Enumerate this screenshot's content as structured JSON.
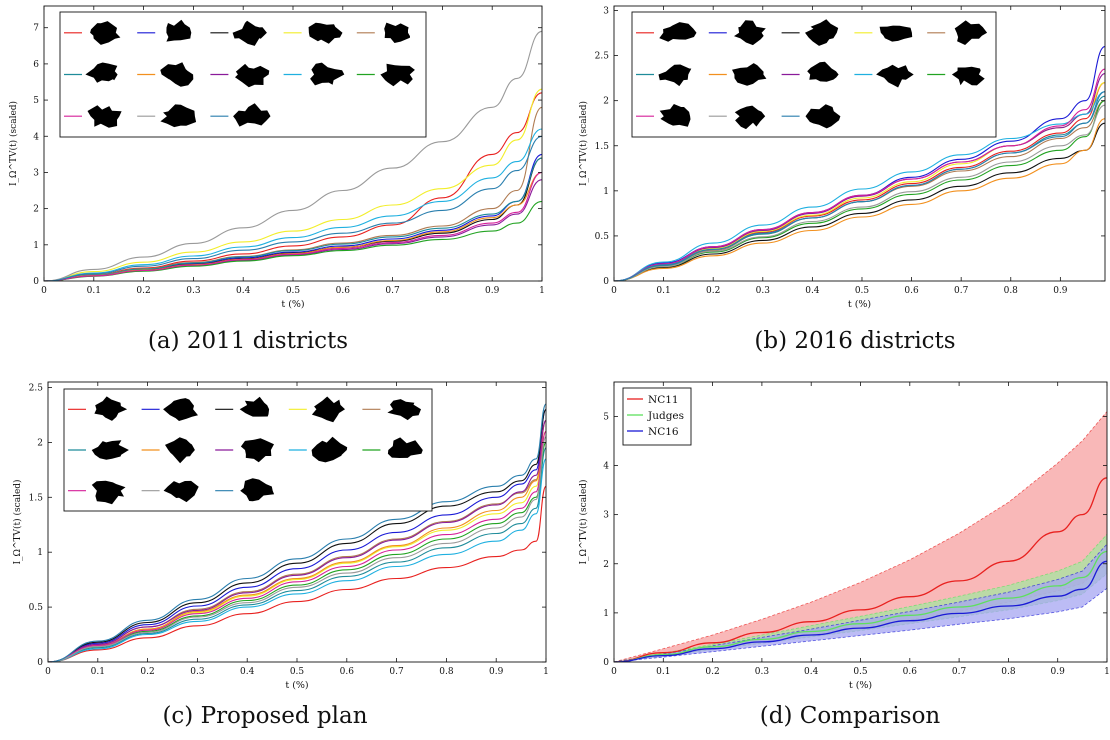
{
  "colors": {
    "red": "#e8211f",
    "blue": "#1a1ad6",
    "black": "#111111",
    "yellow": "#f2ee2a",
    "brown": "#b07b52",
    "teal": "#1f8c9a",
    "orange": "#f2901e",
    "purple": "#8a1a9a",
    "cyan": "#1fb0e0",
    "green": "#22a322",
    "magenta": "#d6209a",
    "gray": "#9a9a9a",
    "steel": "#2a7fae",
    "light_green": "#5ee05e",
    "nc11_fill": "#f7a0a0",
    "judges_fill": "#a6e6a0",
    "nc16_fill": "#a5a5f2"
  },
  "legend_icon": "district-shape-icon",
  "captions": {
    "a": "(a) 2011 districts",
    "b": "(b) 2016 districts",
    "c": "(c) Proposed plan",
    "d": "(d) Comparison"
  },
  "chart_data": [
    {
      "id": "a",
      "type": "line",
      "xlabel": "t (%)",
      "ylabel": "I_Ω^TV(t) (scaled)",
      "xlim": [
        0,
        1
      ],
      "ylim": [
        0,
        7.6
      ],
      "xticks": [
        "0",
        "0.1",
        "0.2",
        "0.3",
        "0.4",
        "0.5",
        "0.6",
        "0.7",
        "0.8",
        "0.9",
        "1"
      ],
      "yticks": [
        "0",
        "1",
        "2",
        "3",
        "4",
        "5",
        "6",
        "7"
      ],
      "legend_position": "top-left",
      "x": [
        0,
        0.1,
        0.2,
        0.3,
        0.4,
        0.5,
        0.6,
        0.7,
        0.8,
        0.9,
        0.95,
        1
      ],
      "series": [
        {
          "color": "red",
          "values": [
            0,
            0.18,
            0.36,
            0.55,
            0.75,
            0.97,
            1.22,
            1.55,
            2.3,
            3.5,
            4.1,
            5.2
          ]
        },
        {
          "color": "blue",
          "values": [
            0,
            0.16,
            0.32,
            0.48,
            0.64,
            0.8,
            0.97,
            1.16,
            1.4,
            1.8,
            2.2,
            3.5
          ]
        },
        {
          "color": "black",
          "values": [
            0,
            0.15,
            0.3,
            0.46,
            0.61,
            0.77,
            0.93,
            1.1,
            1.32,
            1.7,
            2.1,
            3.4
          ]
        },
        {
          "color": "yellow",
          "values": [
            0,
            0.26,
            0.52,
            0.8,
            1.08,
            1.38,
            1.7,
            2.1,
            2.55,
            3.2,
            3.9,
            5.3
          ]
        },
        {
          "color": "brown",
          "values": [
            0,
            0.17,
            0.34,
            0.51,
            0.68,
            0.86,
            1.05,
            1.26,
            1.52,
            2.0,
            2.5,
            4.8
          ]
        },
        {
          "color": "teal",
          "values": [
            0,
            0.16,
            0.33,
            0.5,
            0.67,
            0.84,
            1.02,
            1.22,
            1.46,
            1.85,
            2.2,
            3.4
          ]
        },
        {
          "color": "orange",
          "values": [
            0,
            0.15,
            0.3,
            0.45,
            0.6,
            0.76,
            0.93,
            1.12,
            1.36,
            1.75,
            2.1,
            3.0
          ]
        },
        {
          "color": "purple",
          "values": [
            0,
            0.14,
            0.28,
            0.43,
            0.57,
            0.72,
            0.87,
            1.03,
            1.22,
            1.55,
            1.85,
            2.8
          ]
        },
        {
          "color": "cyan",
          "values": [
            0,
            0.22,
            0.45,
            0.69,
            0.94,
            1.2,
            1.48,
            1.8,
            2.2,
            2.85,
            3.3,
            4.2
          ]
        },
        {
          "color": "green",
          "values": [
            0,
            0.13,
            0.27,
            0.41,
            0.55,
            0.7,
            0.84,
            0.99,
            1.15,
            1.38,
            1.6,
            2.2
          ]
        },
        {
          "color": "magenta",
          "values": [
            0,
            0.14,
            0.29,
            0.44,
            0.59,
            0.74,
            0.9,
            1.06,
            1.26,
            1.6,
            1.9,
            3.0
          ]
        },
        {
          "color": "gray",
          "values": [
            0,
            0.32,
            0.66,
            1.04,
            1.47,
            1.95,
            2.5,
            3.12,
            3.85,
            4.8,
            5.6,
            6.9
          ]
        },
        {
          "color": "steel",
          "values": [
            0,
            0.2,
            0.41,
            0.62,
            0.85,
            1.08,
            1.32,
            1.6,
            1.95,
            2.55,
            3.05,
            4.0
          ]
        }
      ]
    },
    {
      "id": "b",
      "type": "line",
      "xlabel": "t (%)",
      "ylabel": "I_Ω^TV(t) (scaled)",
      "xlim": [
        0,
        0.99
      ],
      "ylim": [
        0,
        3.05
      ],
      "xticks": [
        "0",
        "0.1",
        "0.2",
        "0.3",
        "0.4",
        "0.5",
        "0.6",
        "0.7",
        "0.8",
        "0.9"
      ],
      "yticks": [
        "0",
        "0.5",
        "1",
        "1.5",
        "2",
        "2.5",
        "3"
      ],
      "legend_position": "top-left",
      "x": [
        0,
        0.1,
        0.2,
        0.3,
        0.4,
        0.5,
        0.6,
        0.7,
        0.8,
        0.9,
        0.95,
        0.99
      ],
      "series": [
        {
          "color": "red",
          "values": [
            0,
            0.18,
            0.36,
            0.54,
            0.72,
            0.9,
            1.08,
            1.26,
            1.44,
            1.64,
            1.8,
            2.2
          ]
        },
        {
          "color": "blue",
          "values": [
            0,
            0.2,
            0.38,
            0.57,
            0.76,
            0.95,
            1.15,
            1.35,
            1.55,
            1.8,
            2.0,
            2.6
          ]
        },
        {
          "color": "black",
          "values": [
            0,
            0.15,
            0.3,
            0.45,
            0.6,
            0.75,
            0.9,
            1.05,
            1.2,
            1.36,
            1.45,
            1.75
          ]
        },
        {
          "color": "yellow",
          "values": [
            0,
            0.18,
            0.36,
            0.55,
            0.73,
            0.92,
            1.1,
            1.3,
            1.5,
            1.7,
            1.85,
            2.2
          ]
        },
        {
          "color": "brown",
          "values": [
            0,
            0.17,
            0.34,
            0.52,
            0.7,
            0.88,
            1.05,
            1.22,
            1.38,
            1.58,
            1.7,
            2.0
          ]
        },
        {
          "color": "teal",
          "values": [
            0,
            0.17,
            0.35,
            0.52,
            0.7,
            0.88,
            1.06,
            1.24,
            1.42,
            1.62,
            1.75,
            2.05
          ]
        },
        {
          "color": "orange",
          "values": [
            0,
            0.14,
            0.28,
            0.42,
            0.56,
            0.71,
            0.85,
            1.0,
            1.14,
            1.3,
            1.45,
            1.8
          ]
        },
        {
          "color": "purple",
          "values": [
            0,
            0.19,
            0.37,
            0.56,
            0.75,
            0.94,
            1.13,
            1.32,
            1.5,
            1.7,
            1.85,
            2.3
          ]
        },
        {
          "color": "cyan",
          "values": [
            0,
            0.21,
            0.42,
            0.62,
            0.82,
            1.02,
            1.21,
            1.4,
            1.58,
            1.74,
            1.85,
            2.1
          ]
        },
        {
          "color": "green",
          "values": [
            0,
            0.16,
            0.32,
            0.48,
            0.64,
            0.8,
            0.96,
            1.12,
            1.28,
            1.45,
            1.6,
            2.0
          ]
        },
        {
          "color": "magenta",
          "values": [
            0,
            0.19,
            0.38,
            0.57,
            0.76,
            0.95,
            1.13,
            1.32,
            1.5,
            1.72,
            1.9,
            2.35
          ]
        },
        {
          "color": "gray",
          "values": [
            0,
            0.16,
            0.33,
            0.49,
            0.66,
            0.82,
            0.99,
            1.15,
            1.32,
            1.5,
            1.62,
            1.95
          ]
        },
        {
          "color": "steel",
          "values": [
            0,
            0.18,
            0.35,
            0.53,
            0.7,
            0.88,
            1.06,
            1.24,
            1.42,
            1.6,
            1.75,
            2.1
          ]
        }
      ]
    },
    {
      "id": "c",
      "type": "line",
      "xlabel": "t (%)",
      "ylabel": "I_Ω^TV(t) (scaled)",
      "xlim": [
        0,
        1
      ],
      "ylim": [
        0,
        2.55
      ],
      "xticks": [
        "0",
        "0.1",
        "0.2",
        "0.3",
        "0.4",
        "0.5",
        "0.6",
        "0.7",
        "0.8",
        "0.9",
        "1"
      ],
      "yticks": [
        "0",
        "0.5",
        "1",
        "1.5",
        "2",
        "2.5"
      ],
      "legend_position": "top-left",
      "x": [
        0,
        0.1,
        0.2,
        0.3,
        0.4,
        0.5,
        0.6,
        0.7,
        0.8,
        0.9,
        0.95,
        0.98,
        1
      ],
      "series": [
        {
          "color": "red",
          "values": [
            0,
            0.11,
            0.22,
            0.33,
            0.44,
            0.55,
            0.66,
            0.76,
            0.86,
            0.96,
            1.02,
            1.1,
            1.6
          ]
        },
        {
          "color": "blue",
          "values": [
            0,
            0.17,
            0.34,
            0.51,
            0.68,
            0.85,
            1.02,
            1.18,
            1.34,
            1.5,
            1.62,
            1.75,
            2.3
          ]
        },
        {
          "color": "black",
          "values": [
            0,
            0.18,
            0.36,
            0.54,
            0.72,
            0.9,
            1.08,
            1.26,
            1.42,
            1.55,
            1.65,
            1.8,
            2.3
          ]
        },
        {
          "color": "yellow",
          "values": [
            0,
            0.15,
            0.3,
            0.45,
            0.6,
            0.75,
            0.9,
            1.05,
            1.2,
            1.35,
            1.45,
            1.6,
            2.1
          ]
        },
        {
          "color": "brown",
          "values": [
            0,
            0.16,
            0.32,
            0.48,
            0.64,
            0.8,
            0.96,
            1.12,
            1.28,
            1.44,
            1.54,
            1.66,
            2.2
          ]
        },
        {
          "color": "teal",
          "values": [
            0,
            0.13,
            0.26,
            0.39,
            0.52,
            0.65,
            0.78,
            0.91,
            1.04,
            1.17,
            1.26,
            1.4,
            1.95
          ]
        },
        {
          "color": "orange",
          "values": [
            0,
            0.15,
            0.3,
            0.46,
            0.61,
            0.76,
            0.91,
            1.06,
            1.22,
            1.38,
            1.5,
            1.65,
            2.2
          ]
        },
        {
          "color": "purple",
          "values": [
            0,
            0.16,
            0.32,
            0.47,
            0.63,
            0.79,
            0.95,
            1.11,
            1.27,
            1.43,
            1.55,
            1.7,
            2.2
          ]
        },
        {
          "color": "cyan",
          "values": [
            0,
            0.12,
            0.25,
            0.37,
            0.5,
            0.62,
            0.74,
            0.87,
            0.98,
            1.1,
            1.2,
            1.35,
            1.85
          ]
        },
        {
          "color": "green",
          "values": [
            0,
            0.14,
            0.28,
            0.42,
            0.56,
            0.7,
            0.84,
            0.98,
            1.12,
            1.26,
            1.36,
            1.5,
            2.0
          ]
        },
        {
          "color": "magenta",
          "values": [
            0,
            0.15,
            0.29,
            0.44,
            0.58,
            0.73,
            0.87,
            1.02,
            1.16,
            1.3,
            1.4,
            1.55,
            2.1
          ]
        },
        {
          "color": "gray",
          "values": [
            0,
            0.14,
            0.27,
            0.41,
            0.54,
            0.68,
            0.81,
            0.95,
            1.08,
            1.22,
            1.32,
            1.48,
            2.05
          ]
        },
        {
          "color": "steel",
          "values": [
            0,
            0.19,
            0.38,
            0.57,
            0.76,
            0.94,
            1.12,
            1.3,
            1.46,
            1.6,
            1.7,
            1.85,
            2.35
          ]
        }
      ]
    },
    {
      "id": "d",
      "type": "area",
      "xlabel": "t (%)",
      "ylabel": "I_Ω^TV(t) (scaled)",
      "xlim": [
        0,
        1
      ],
      "ylim": [
        0,
        5.7
      ],
      "xticks": [
        "0",
        "0.1",
        "0.2",
        "0.3",
        "0.4",
        "0.5",
        "0.6",
        "0.7",
        "0.8",
        "0.9",
        "1"
      ],
      "yticks": [
        "0",
        "1",
        "2",
        "3",
        "4",
        "5"
      ],
      "legend_position": "top-left",
      "x": [
        0,
        0.1,
        0.2,
        0.3,
        0.4,
        0.5,
        0.6,
        0.7,
        0.8,
        0.9,
        0.95,
        1
      ],
      "series": [
        {
          "name": "NC11",
          "color": "red",
          "fill": "nc11_fill",
          "values": [
            0,
            0.19,
            0.39,
            0.6,
            0.82,
            1.06,
            1.33,
            1.65,
            2.05,
            2.65,
            3.0,
            3.75
          ],
          "lower": [
            0,
            0.13,
            0.27,
            0.41,
            0.55,
            0.7,
            0.86,
            1.03,
            1.22,
            1.45,
            1.6,
            2.0
          ],
          "upper": [
            0,
            0.27,
            0.55,
            0.87,
            1.22,
            1.62,
            2.08,
            2.62,
            3.25,
            4.05,
            4.5,
            5.1
          ]
        },
        {
          "name": "Judges",
          "color": "light_green",
          "fill": "judges_fill",
          "values": [
            0,
            0.15,
            0.31,
            0.46,
            0.62,
            0.78,
            0.95,
            1.12,
            1.3,
            1.55,
            1.72,
            2.25
          ],
          "lower": [
            0,
            0.12,
            0.25,
            0.38,
            0.51,
            0.64,
            0.78,
            0.92,
            1.06,
            1.25,
            1.38,
            1.8
          ],
          "upper": [
            0,
            0.18,
            0.36,
            0.55,
            0.74,
            0.93,
            1.13,
            1.34,
            1.56,
            1.85,
            2.05,
            2.6
          ]
        },
        {
          "name": "NC16",
          "color": "blue",
          "fill": "nc16_fill",
          "values": [
            0,
            0.13,
            0.27,
            0.41,
            0.55,
            0.69,
            0.84,
            0.99,
            1.14,
            1.34,
            1.48,
            2.05
          ],
          "lower": [
            0,
            0.1,
            0.21,
            0.32,
            0.43,
            0.54,
            0.65,
            0.77,
            0.88,
            1.02,
            1.12,
            1.5
          ],
          "upper": [
            0,
            0.16,
            0.33,
            0.5,
            0.67,
            0.85,
            1.03,
            1.22,
            1.42,
            1.68,
            1.85,
            2.4
          ]
        }
      ]
    }
  ]
}
